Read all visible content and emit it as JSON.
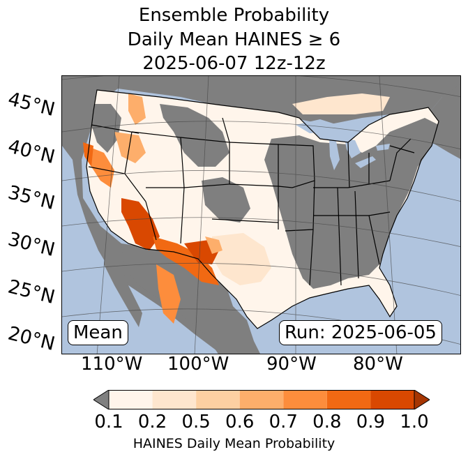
{
  "title": {
    "line1": "Ensemble Probability",
    "line2": "Daily Mean HAINES ≥ 6",
    "line3": "2025-06-07 12z-12z"
  },
  "map": {
    "lat_labels": [
      "45°N",
      "40°N",
      "35°N",
      "30°N",
      "25°N",
      "20°N"
    ],
    "lon_labels": [
      "110°W",
      "100°W",
      "90°W",
      "80°W"
    ],
    "mean_badge": "Mean",
    "run_badge": "Run: 2025-06-05",
    "colors": {
      "ocean": "#b0c4de",
      "missing": "#7f7f7f",
      "border": "#000000"
    }
  },
  "colorbar": {
    "ticks": [
      "0.1",
      "0.2",
      "0.5",
      "0.6",
      "0.7",
      "0.8",
      "0.9",
      "1.0"
    ],
    "colors": [
      "#fff5eb",
      "#fee6ce",
      "#fdd0a2",
      "#fdae6b",
      "#fd8d3c",
      "#f16913",
      "#d94801"
    ],
    "under_color": "#808080",
    "over_color": "#a63603",
    "label": "HAINES Daily Mean Probability"
  }
}
